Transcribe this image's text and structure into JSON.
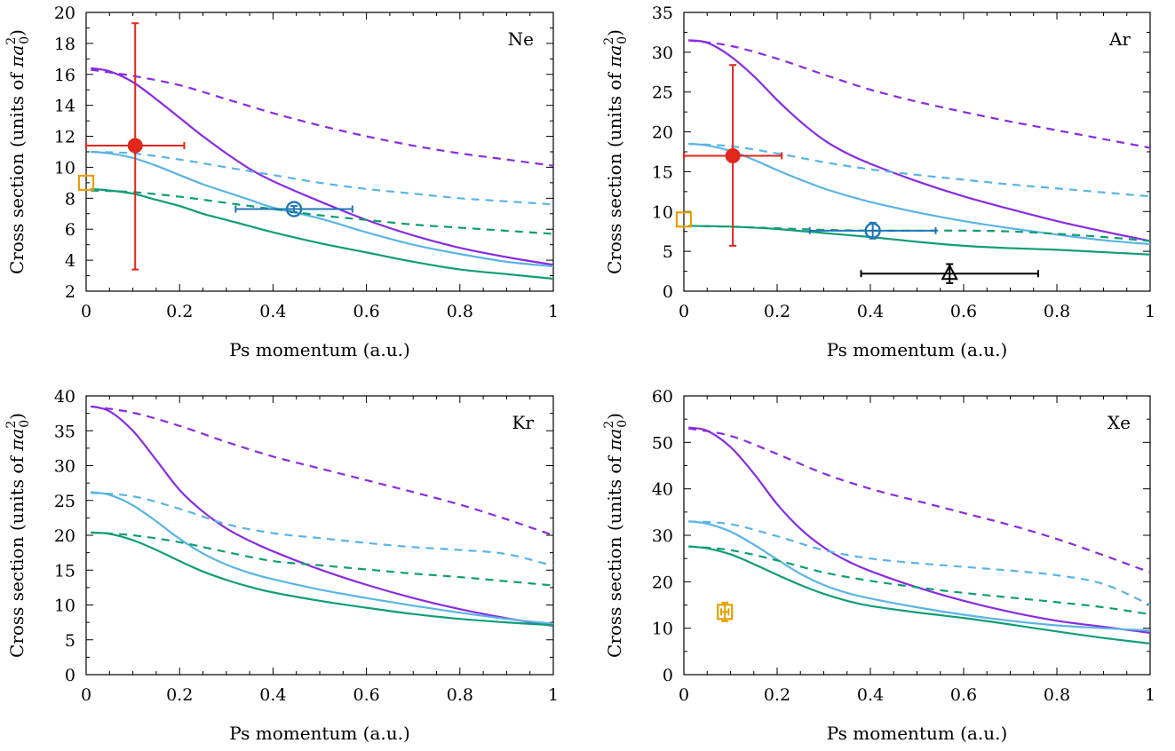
{
  "colors": {
    "purple": "#8a2be2",
    "sky": "#5ab4e5",
    "green": "#109d75",
    "red": "#e1261c",
    "blue": "#1f77b4",
    "orange": "#e69f00",
    "black": "#000000"
  },
  "chart_data": [
    {
      "type": "line",
      "panel_label": "Ne",
      "xlabel": "Ps momentum (a.u.)",
      "ylabel_main": "Cross section (units of ",
      "ylabel_pi": "π",
      "ylabel_a": "a",
      "ylabel_sup": "2",
      "ylabel_sub": "0",
      "ylabel_close": ")",
      "xlim": [
        0,
        1
      ],
      "ylim": [
        2,
        20
      ],
      "xticks": [
        0,
        0.2,
        0.4,
        0.6,
        0.8,
        1
      ],
      "xtick_labels": [
        "0",
        "0.2",
        "0.4",
        "0.6",
        "0.8",
        "1"
      ],
      "yticks": [
        2,
        4,
        6,
        8,
        10,
        12,
        14,
        16,
        18,
        20
      ],
      "ytick_labels": [
        "2",
        "4",
        "6",
        "8",
        "10",
        "12",
        "14",
        "16",
        "18",
        "20"
      ],
      "series": [
        {
          "color": "purple",
          "dash": false,
          "x": [
            0.01,
            0.05,
            0.1,
            0.15,
            0.2,
            0.25,
            0.3,
            0.35,
            0.4,
            0.5,
            0.6,
            0.7,
            0.8,
            0.9,
            1.0
          ],
          "y": [
            16.4,
            16.2,
            15.5,
            14.4,
            13.2,
            12.0,
            10.9,
            9.9,
            9.1,
            7.8,
            6.6,
            5.6,
            4.8,
            4.2,
            3.7
          ]
        },
        {
          "color": "purple",
          "dash": true,
          "x": [
            0.01,
            0.1,
            0.2,
            0.3,
            0.4,
            0.5,
            0.6,
            0.7,
            0.8,
            0.9,
            1.0
          ],
          "y": [
            16.3,
            15.9,
            15.3,
            14.4,
            13.5,
            12.7,
            12.0,
            11.4,
            10.9,
            10.5,
            10.1
          ]
        },
        {
          "color": "sky",
          "dash": false,
          "x": [
            0.01,
            0.05,
            0.1,
            0.15,
            0.2,
            0.25,
            0.3,
            0.35,
            0.4,
            0.5,
            0.6,
            0.7,
            0.8,
            0.9,
            1.0
          ],
          "y": [
            11.0,
            10.9,
            10.6,
            10.1,
            9.5,
            8.9,
            8.4,
            7.9,
            7.4,
            6.7,
            5.8,
            5.0,
            4.4,
            3.9,
            3.6
          ]
        },
        {
          "color": "sky",
          "dash": true,
          "x": [
            0.01,
            0.1,
            0.2,
            0.3,
            0.4,
            0.5,
            0.6,
            0.7,
            0.8,
            0.9,
            1.0
          ],
          "y": [
            11.0,
            10.9,
            10.5,
            10.0,
            9.5,
            9.0,
            8.6,
            8.3,
            8.0,
            7.8,
            7.6
          ]
        },
        {
          "color": "green",
          "dash": false,
          "x": [
            0.01,
            0.05,
            0.1,
            0.15,
            0.2,
            0.25,
            0.3,
            0.35,
            0.4,
            0.5,
            0.6,
            0.7,
            0.8,
            0.9,
            1.0
          ],
          "y": [
            8.6,
            8.5,
            8.3,
            7.9,
            7.5,
            7.0,
            6.6,
            6.2,
            5.8,
            5.1,
            4.5,
            3.9,
            3.4,
            3.1,
            2.8
          ]
        },
        {
          "color": "green",
          "dash": true,
          "x": [
            0.01,
            0.1,
            0.2,
            0.3,
            0.4,
            0.5,
            0.6,
            0.7,
            0.8,
            0.9,
            1.0
          ],
          "y": [
            8.5,
            8.4,
            8.1,
            7.7,
            7.3,
            6.9,
            6.6,
            6.3,
            6.1,
            5.9,
            5.7
          ]
        }
      ],
      "points": [
        {
          "color": "red",
          "marker": "filled-circle",
          "x": 0.105,
          "y": 11.4,
          "xerr": [
            0.0,
            0.21
          ],
          "yerr": [
            3.4,
            19.3
          ]
        },
        {
          "color": "blue",
          "marker": "open-circle",
          "x": 0.445,
          "y": 7.3,
          "xerr": [
            0.32,
            0.57
          ],
          "yerr": [
            7.1,
            7.5
          ]
        },
        {
          "color": "orange",
          "marker": "open-square",
          "x": 0.0,
          "y": 9.0,
          "xerr": null,
          "yerr": null
        }
      ]
    },
    {
      "type": "line",
      "panel_label": "Ar",
      "xlabel": "Ps momentum (a.u.)",
      "ylabel_main": "Cross section (units of ",
      "ylabel_pi": "π",
      "ylabel_a": "a",
      "ylabel_sup": "2",
      "ylabel_sub": "0",
      "ylabel_close": ")",
      "xlim": [
        0,
        1
      ],
      "ylim": [
        0,
        35
      ],
      "xticks": [
        0,
        0.2,
        0.4,
        0.6,
        0.8,
        1
      ],
      "xtick_labels": [
        "0",
        "0.2",
        "0.4",
        "0.6",
        "0.8",
        "1"
      ],
      "yticks": [
        0,
        5,
        10,
        15,
        20,
        25,
        30,
        35
      ],
      "ytick_labels": [
        "0",
        "5",
        "10",
        "15",
        "20",
        "25",
        "30",
        "35"
      ],
      "series": [
        {
          "color": "purple",
          "dash": false,
          "x": [
            0.01,
            0.05,
            0.1,
            0.15,
            0.2,
            0.25,
            0.3,
            0.35,
            0.4,
            0.5,
            0.6,
            0.7,
            0.8,
            0.9,
            1.0
          ],
          "y": [
            31.5,
            31.2,
            29.5,
            27.0,
            24.0,
            21.3,
            19.0,
            17.3,
            16.0,
            13.8,
            11.9,
            10.3,
            8.8,
            7.5,
            6.3
          ]
        },
        {
          "color": "purple",
          "dash": true,
          "x": [
            0.01,
            0.1,
            0.2,
            0.3,
            0.4,
            0.5,
            0.6,
            0.7,
            0.8,
            0.9,
            1.0
          ],
          "y": [
            31.5,
            30.8,
            29.2,
            27.2,
            25.3,
            23.8,
            22.5,
            21.3,
            20.2,
            19.1,
            18.0
          ]
        },
        {
          "color": "sky",
          "dash": false,
          "x": [
            0.01,
            0.05,
            0.1,
            0.15,
            0.2,
            0.25,
            0.3,
            0.35,
            0.4,
            0.5,
            0.6,
            0.7,
            0.8,
            0.9,
            1.0
          ],
          "y": [
            18.5,
            18.3,
            17.6,
            16.5,
            15.2,
            14.0,
            12.9,
            12.0,
            11.2,
            9.9,
            8.8,
            7.9,
            7.1,
            6.4,
            5.9
          ]
        },
        {
          "color": "sky",
          "dash": true,
          "x": [
            0.01,
            0.1,
            0.2,
            0.3,
            0.4,
            0.5,
            0.6,
            0.7,
            0.8,
            0.9,
            1.0
          ],
          "y": [
            18.5,
            18.2,
            17.3,
            16.2,
            15.3,
            14.6,
            14.0,
            13.4,
            12.9,
            12.4,
            11.9
          ]
        },
        {
          "color": "green",
          "dash": false,
          "x": [
            0.01,
            0.1,
            0.2,
            0.3,
            0.4,
            0.5,
            0.6,
            0.7,
            0.8,
            0.9,
            1.0
          ],
          "y": [
            8.2,
            8.1,
            7.8,
            7.3,
            6.8,
            6.2,
            5.7,
            5.4,
            5.2,
            4.9,
            4.6
          ]
        },
        {
          "color": "green",
          "dash": true,
          "x": [
            0.01,
            0.1,
            0.2,
            0.3,
            0.4,
            0.5,
            0.6,
            0.7,
            0.8,
            0.9,
            1.0
          ],
          "y": [
            8.2,
            8.1,
            7.9,
            7.7,
            7.6,
            7.6,
            7.6,
            7.5,
            7.2,
            6.8,
            6.3
          ]
        }
      ],
      "points": [
        {
          "color": "red",
          "marker": "filled-circle",
          "x": 0.105,
          "y": 17.0,
          "xerr": [
            0.0,
            0.21
          ],
          "yerr": [
            5.7,
            28.4
          ]
        },
        {
          "color": "blue",
          "marker": "open-circle",
          "x": 0.405,
          "y": 7.6,
          "xerr": [
            0.27,
            0.54
          ],
          "yerr": [
            6.6,
            8.6
          ]
        },
        {
          "color": "black",
          "marker": "open-triangle",
          "x": 0.57,
          "y": 2.2,
          "xerr": [
            0.38,
            0.76
          ],
          "yerr": [
            1.0,
            3.4
          ]
        },
        {
          "color": "orange",
          "marker": "open-square",
          "x": 0.0,
          "y": 9.0,
          "xerr": null,
          "yerr": null
        }
      ]
    },
    {
      "type": "line",
      "panel_label": "Kr",
      "xlabel": "Ps momentum (a.u.)",
      "ylabel_main": "Cross section (units of ",
      "ylabel_pi": "π",
      "ylabel_a": "a",
      "ylabel_sup": "2",
      "ylabel_sub": "0",
      "ylabel_close": ")",
      "xlim": [
        0,
        1
      ],
      "ylim": [
        0,
        40
      ],
      "xticks": [
        0,
        0.2,
        0.4,
        0.6,
        0.8,
        1
      ],
      "xtick_labels": [
        "0",
        "0.2",
        "0.4",
        "0.6",
        "0.8",
        "1"
      ],
      "yticks": [
        0,
        5,
        10,
        15,
        20,
        25,
        30,
        35,
        40
      ],
      "ytick_labels": [
        "0",
        "5",
        "10",
        "15",
        "20",
        "25",
        "30",
        "35",
        "40"
      ],
      "series": [
        {
          "color": "purple",
          "dash": false,
          "x": [
            0.01,
            0.05,
            0.1,
            0.15,
            0.2,
            0.25,
            0.3,
            0.35,
            0.4,
            0.5,
            0.6,
            0.7,
            0.8,
            0.9,
            1.0
          ],
          "y": [
            38.5,
            37.8,
            35.0,
            30.8,
            26.5,
            23.4,
            21.0,
            19.2,
            17.7,
            15.1,
            12.9,
            11.0,
            9.4,
            8.1,
            7.0
          ]
        },
        {
          "color": "purple",
          "dash": true,
          "x": [
            0.01,
            0.1,
            0.2,
            0.3,
            0.4,
            0.5,
            0.6,
            0.7,
            0.8,
            0.9,
            1.0
          ],
          "y": [
            38.5,
            37.6,
            35.7,
            33.4,
            31.3,
            29.6,
            27.9,
            26.2,
            24.4,
            22.3,
            20.0
          ]
        },
        {
          "color": "sky",
          "dash": false,
          "x": [
            0.01,
            0.05,
            0.1,
            0.15,
            0.2,
            0.25,
            0.3,
            0.35,
            0.4,
            0.5,
            0.6,
            0.7,
            0.8,
            0.9,
            1.0
          ],
          "y": [
            26.2,
            25.8,
            24.3,
            22.0,
            19.5,
            17.4,
            15.8,
            14.6,
            13.7,
            12.2,
            11.0,
            9.9,
            8.9,
            8.0,
            7.3
          ]
        },
        {
          "color": "sky",
          "dash": true,
          "x": [
            0.01,
            0.1,
            0.2,
            0.3,
            0.4,
            0.5,
            0.6,
            0.7,
            0.8,
            0.9,
            1.0
          ],
          "y": [
            26.1,
            25.6,
            23.8,
            21.6,
            20.3,
            19.6,
            18.9,
            18.3,
            17.9,
            17.3,
            15.6
          ]
        },
        {
          "color": "green",
          "dash": false,
          "x": [
            0.01,
            0.05,
            0.1,
            0.15,
            0.2,
            0.25,
            0.3,
            0.35,
            0.4,
            0.5,
            0.6,
            0.7,
            0.8,
            0.9,
            1.0
          ],
          "y": [
            20.4,
            20.2,
            19.3,
            17.9,
            16.3,
            14.8,
            13.6,
            12.6,
            11.8,
            10.6,
            9.6,
            8.7,
            8.0,
            7.5,
            7.1
          ]
        },
        {
          "color": "green",
          "dash": true,
          "x": [
            0.01,
            0.1,
            0.2,
            0.3,
            0.4,
            0.5,
            0.6,
            0.7,
            0.8,
            0.9,
            1.0
          ],
          "y": [
            20.4,
            20.0,
            19.0,
            17.6,
            16.3,
            15.7,
            15.1,
            14.5,
            14.0,
            13.4,
            12.8
          ]
        }
      ],
      "points": []
    },
    {
      "type": "line",
      "panel_label": "Xe",
      "xlabel": "Ps momentum (a.u.)",
      "ylabel_main": "Cross section (units of ",
      "ylabel_pi": "π",
      "ylabel_a": "a",
      "ylabel_sup": "2",
      "ylabel_sub": "0",
      "ylabel_close": ")",
      "xlim": [
        0,
        1
      ],
      "ylim": [
        0,
        60
      ],
      "xticks": [
        0,
        0.2,
        0.4,
        0.6,
        0.8,
        1
      ],
      "xtick_labels": [
        "0",
        "0.2",
        "0.4",
        "0.6",
        "0.8",
        "1"
      ],
      "yticks": [
        0,
        10,
        20,
        30,
        40,
        50,
        60
      ],
      "ytick_labels": [
        "0",
        "10",
        "20",
        "30",
        "40",
        "50",
        "60"
      ],
      "series": [
        {
          "color": "purple",
          "dash": false,
          "x": [
            0.01,
            0.05,
            0.1,
            0.15,
            0.2,
            0.25,
            0.3,
            0.35,
            0.4,
            0.5,
            0.6,
            0.7,
            0.8,
            0.9,
            1.0
          ],
          "y": [
            53.2,
            52.5,
            49.0,
            43.3,
            36.7,
            31.4,
            27.4,
            24.5,
            22.3,
            18.8,
            15.9,
            13.5,
            11.6,
            10.3,
            9.0
          ]
        },
        {
          "color": "purple",
          "dash": true,
          "x": [
            0.01,
            0.1,
            0.2,
            0.3,
            0.4,
            0.5,
            0.6,
            0.7,
            0.8,
            0.9,
            1.0
          ],
          "y": [
            53.0,
            51.4,
            47.5,
            43.3,
            40.0,
            37.4,
            34.8,
            32.2,
            29.2,
            25.7,
            22.0
          ]
        },
        {
          "color": "sky",
          "dash": false,
          "x": [
            0.01,
            0.05,
            0.1,
            0.15,
            0.2,
            0.25,
            0.3,
            0.35,
            0.4,
            0.5,
            0.6,
            0.7,
            0.8,
            0.9,
            1.0
          ],
          "y": [
            33.0,
            32.5,
            30.8,
            28.0,
            24.8,
            21.7,
            19.3,
            17.6,
            16.4,
            14.5,
            12.9,
            11.6,
            10.6,
            10.0,
            9.5
          ]
        },
        {
          "color": "sky",
          "dash": true,
          "x": [
            0.01,
            0.1,
            0.2,
            0.3,
            0.4,
            0.5,
            0.6,
            0.7,
            0.8,
            0.9,
            1.0
          ],
          "y": [
            33.0,
            32.4,
            29.8,
            26.8,
            25.0,
            24.0,
            23.2,
            22.4,
            21.4,
            19.5,
            15.0
          ]
        },
        {
          "color": "green",
          "dash": false,
          "x": [
            0.01,
            0.05,
            0.1,
            0.15,
            0.2,
            0.25,
            0.3,
            0.35,
            0.4,
            0.5,
            0.6,
            0.7,
            0.8,
            0.9,
            1.0
          ],
          "y": [
            27.6,
            27.2,
            25.9,
            23.8,
            21.5,
            19.3,
            17.4,
            15.9,
            14.8,
            13.4,
            12.2,
            10.8,
            9.3,
            7.9,
            6.7
          ]
        },
        {
          "color": "green",
          "dash": true,
          "x": [
            0.01,
            0.1,
            0.2,
            0.3,
            0.4,
            0.5,
            0.6,
            0.7,
            0.8,
            0.9,
            1.0
          ],
          "y": [
            27.6,
            26.8,
            24.6,
            22.0,
            20.2,
            18.8,
            17.6,
            16.6,
            15.6,
            14.5,
            13.0
          ]
        }
      ],
      "points": [
        {
          "color": "orange",
          "marker": "open-square",
          "x": 0.088,
          "y": 13.5,
          "xerr": [
            0.08,
            0.096
          ],
          "yerr": [
            11.5,
            15.5
          ]
        }
      ]
    }
  ]
}
